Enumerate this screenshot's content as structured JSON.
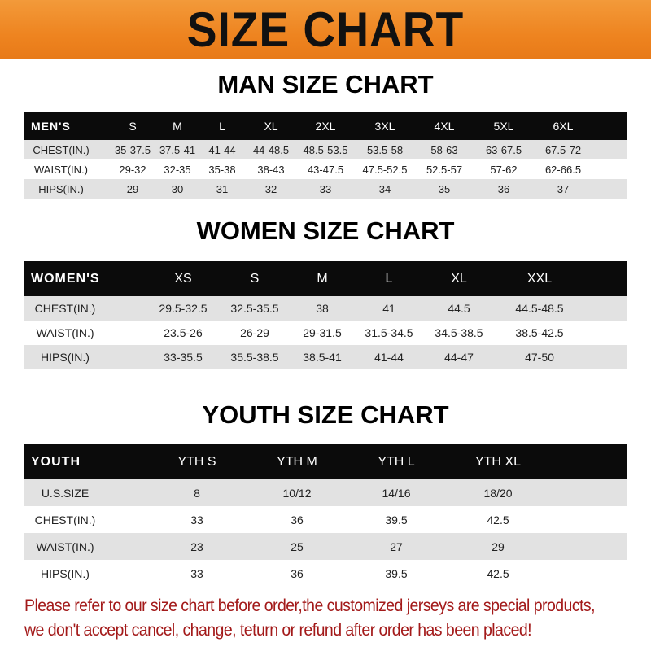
{
  "banner": {
    "title": "SIZE CHART",
    "color": "#ee8420"
  },
  "men": {
    "title": "MAN SIZE CHART",
    "header": [
      "MEN'S",
      "S",
      "M",
      "L",
      "XL",
      "2XL",
      "3XL",
      "4XL",
      "5XL",
      "6XL"
    ],
    "rows": [
      [
        "CHEST(IN.)",
        "35-37.5",
        "37.5-41",
        "41-44",
        "44-48.5",
        "48.5-53.5",
        "53.5-58",
        "58-63",
        "63-67.5",
        "67.5-72"
      ],
      [
        "WAIST(IN.)",
        "29-32",
        "32-35",
        "35-38",
        "38-43",
        "43-47.5",
        "47.5-52.5",
        "52.5-57",
        "57-62",
        "62-66.5"
      ],
      [
        "HIPS(IN.)",
        "29",
        "30",
        "31",
        "32",
        "33",
        "34",
        "35",
        "36",
        "37"
      ]
    ]
  },
  "women": {
    "title": "WOMEN SIZE CHART",
    "header": [
      "WOMEN'S",
      "XS",
      "S",
      "M",
      "L",
      "XL",
      "XXL"
    ],
    "rows": [
      [
        "CHEST(IN.)",
        "29.5-32.5",
        "32.5-35.5",
        "38",
        "41",
        "44.5",
        "44.5-48.5"
      ],
      [
        "WAIST(IN.)",
        "23.5-26",
        "26-29",
        "29-31.5",
        "31.5-34.5",
        "34.5-38.5",
        "38.5-42.5"
      ],
      [
        "HIPS(IN.)",
        "33-35.5",
        "35.5-38.5",
        "38.5-41",
        "41-44",
        "44-47",
        "47-50"
      ]
    ]
  },
  "youth": {
    "title": "YOUTH SIZE CHART",
    "header": [
      "YOUTH",
      "YTH S",
      "YTH M",
      "YTH L",
      "YTH XL"
    ],
    "rows": [
      [
        "U.S.SIZE",
        "8",
        "10/12",
        "14/16",
        "18/20"
      ],
      [
        "CHEST(IN.)",
        "33",
        "36",
        "39.5",
        "42.5"
      ],
      [
        "WAIST(IN.)",
        "23",
        "25",
        "27",
        "29"
      ],
      [
        "HIPS(IN.)",
        "33",
        "36",
        "39.5",
        "42.5"
      ]
    ]
  },
  "note": {
    "line1": "Please refer to our size chart before order,the customized jerseys are special products,",
    "line2": "we don't accept cancel, change, teturn or refund after order has been placed!",
    "color": "#a31a1a"
  }
}
